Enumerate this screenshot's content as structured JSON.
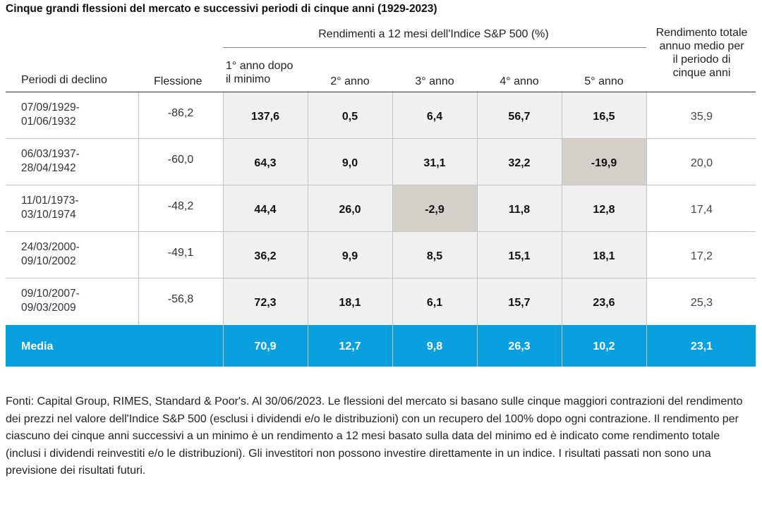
{
  "title": "Cinque grandi flessioni del mercato e successivi periodi di cinque anni (1929-2023)",
  "group_header": "Rendimenti a 12 mesi dell'Indice S&P 500 (%)",
  "headers": {
    "period": "Periodi di declino",
    "drop": "Flessione",
    "y1_line1": "1° anno dopo",
    "y1_line2": "il minimo",
    "y2": "2° anno",
    "y3": "3° anno",
    "y4": "4° anno",
    "y5": "5° anno",
    "avg_line1": "Rendimento totale",
    "avg_line2": "annuo medio per",
    "avg_line3": "il periodo di",
    "avg_line4": "cinque anni"
  },
  "chart_data": {
    "type": "table",
    "columns": [
      "Periodi di declino",
      "Flessione",
      "1° anno dopo il minimo",
      "2° anno",
      "3° anno",
      "4° anno",
      "5° anno",
      "Rendimento totale annuo medio per il periodo di cinque anni"
    ],
    "rows": [
      {
        "start": "07/09/1929-",
        "end": "01/06/1932",
        "drop": "-86,2",
        "y1": "137,6",
        "y2": "0,5",
        "y3": "6,4",
        "y4": "56,7",
        "y5": "16,5",
        "avg": "35,9"
      },
      {
        "start": "06/03/1937-",
        "end": "28/04/1942",
        "drop": "-60,0",
        "y1": "64,3",
        "y2": "9,0",
        "y3": "31,1",
        "y4": "32,2",
        "y5": "-19,9",
        "avg": "20,0"
      },
      {
        "start": "11/01/1973-",
        "end": "03/10/1974",
        "drop": "-48,2",
        "y1": "44,4",
        "y2": "26,0",
        "y3": "-2,9",
        "y4": "11,8",
        "y5": "12,8",
        "avg": "17,4"
      },
      {
        "start": "24/03/2000-",
        "end": "09/10/2002",
        "drop": "-49,1",
        "y1": "36,2",
        "y2": "9,9",
        "y3": "8,5",
        "y4": "15,1",
        "y5": "18,1",
        "avg": "17,2"
      },
      {
        "start": "09/10/2007-",
        "end": "09/03/2009",
        "drop": "-56,8",
        "y1": "72,3",
        "y2": "18,1",
        "y3": "6,1",
        "y4": "15,7",
        "y5": "23,6",
        "avg": "25,3"
      }
    ],
    "average": {
      "label": "Media",
      "y1": "70,9",
      "y2": "12,7",
      "y3": "9,8",
      "y4": "26,3",
      "y5": "10,2",
      "avg": "23,1"
    },
    "highlight_color_negative": "#d4cfc9",
    "shaded_columns_color": "#f0f0f0",
    "average_row_color": "#0aa0df"
  },
  "notes": "Fonti: Capital Group, RIMES, Standard & Poor's. Al 30/06/2023. Le flessioni del mercato si basano sulle cinque maggiori contrazioni del rendimento dei prezzi nel valore dell'Indice S&P 500 (esclusi i dividendi e/o le distribuzioni) con un recupero del 100% dopo ogni contrazione. Il rendimento per ciascuno dei cinque anni successivi a un minimo è un rendimento a 12 mesi basato sulla data del minimo ed è indicato come rendimento totale (inclusi i dividendi reinvestiti e/o le distribuzioni). Gli investitori non possono investire direttamente in un indice. I risultati passati non sono una previsione dei risultati futuri."
}
